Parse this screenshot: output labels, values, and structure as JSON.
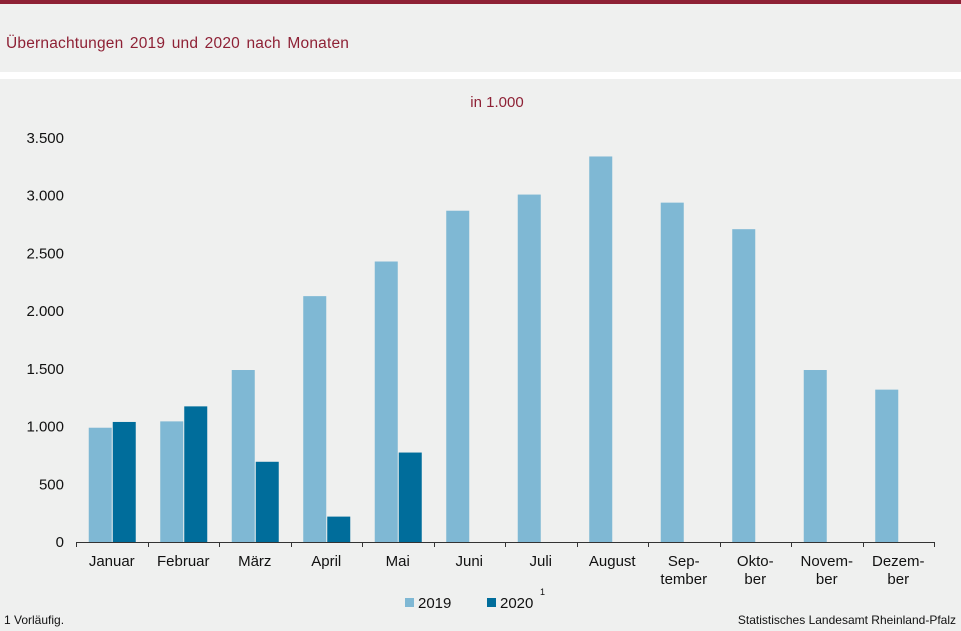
{
  "header": {
    "title": "Übernachtungen  2019 und 2020 nach Monaten"
  },
  "footer": {
    "note": "1 Vorläufig.",
    "source": "Statistisches Landesamt Rheinland-Pfalz"
  },
  "colors": {
    "accent": "#8e2135",
    "series_2019": "#7fb8d4",
    "series_2020": "#006d9b",
    "background": "#eff0ef"
  },
  "chart_data": {
    "type": "bar",
    "unit_label": "in 1.000",
    "categories": [
      [
        "Januar"
      ],
      [
        "Februar"
      ],
      [
        "März"
      ],
      [
        "April"
      ],
      [
        "Mai"
      ],
      [
        "Juni"
      ],
      [
        "Juli"
      ],
      [
        "August"
      ],
      [
        "Sep-",
        "tember"
      ],
      [
        "Okto-",
        "ber"
      ],
      [
        "Novem-",
        "ber"
      ],
      [
        "Dezem-",
        "ber"
      ]
    ],
    "series": [
      {
        "name": "2019",
        "values": [
          990,
          1045,
          1490,
          2130,
          2430,
          2870,
          3010,
          3340,
          2940,
          2710,
          1490,
          1320
        ]
      },
      {
        "name": "2020",
        "superscript": "1",
        "values": [
          1040,
          1175,
          695,
          220,
          775,
          null,
          null,
          null,
          null,
          null,
          null,
          null
        ]
      }
    ],
    "ylim": [
      0,
      3500
    ],
    "yticks": [
      0,
      500,
      1000,
      1500,
      2000,
      2500,
      3000,
      3500
    ],
    "ytick_labels": [
      "0",
      "500",
      "1.000",
      "1.500",
      "2.000",
      "2.500",
      "3.000",
      "3.500"
    ],
    "legend_position": "bottom-center",
    "grid": false
  }
}
